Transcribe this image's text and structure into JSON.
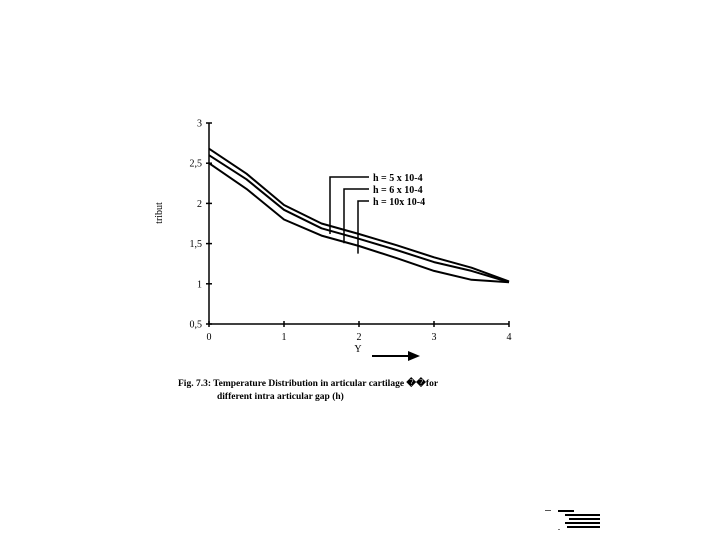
{
  "caption": {
    "line1": "Fig. 7.3: Temperature Distribution in articular cartilage ��for",
    "line2": "different intra articular gap (h)"
  },
  "chart_data": {
    "type": "line",
    "title": "",
    "xlabel": "Y",
    "ylabel": "tribut",
    "xlim": [
      0,
      4
    ],
    "ylim": [
      0.5,
      3
    ],
    "xticks": [
      "0",
      "1",
      "2",
      "3",
      "4"
    ],
    "yticks": [
      "0,5",
      "1",
      "1,5",
      "2",
      "2,5",
      "3"
    ],
    "grid": false,
    "legend_placement": "upper-right, with leader lines to curves",
    "series": [
      {
        "name": "h = 5 x 10-4",
        "x": [
          0,
          0.5,
          1,
          1.5,
          2,
          2.5,
          3,
          3.5,
          4
        ],
        "y": [
          2.68,
          2.37,
          1.98,
          1.75,
          1.62,
          1.48,
          1.33,
          1.2,
          1.03
        ]
      },
      {
        "name": "h = 6 x 10-4",
        "x": [
          0,
          0.5,
          1,
          1.5,
          2,
          2.5,
          3,
          3.5,
          4
        ],
        "y": [
          2.6,
          2.3,
          1.92,
          1.69,
          1.56,
          1.42,
          1.27,
          1.16,
          1.02
        ]
      },
      {
        "name": "h = 10x 10-4",
        "x": [
          0,
          0.5,
          1,
          1.5,
          2,
          2.5,
          3,
          3.5,
          4
        ],
        "y": [
          2.5,
          2.18,
          1.8,
          1.6,
          1.47,
          1.32,
          1.16,
          1.05,
          1.02
        ]
      }
    ]
  }
}
